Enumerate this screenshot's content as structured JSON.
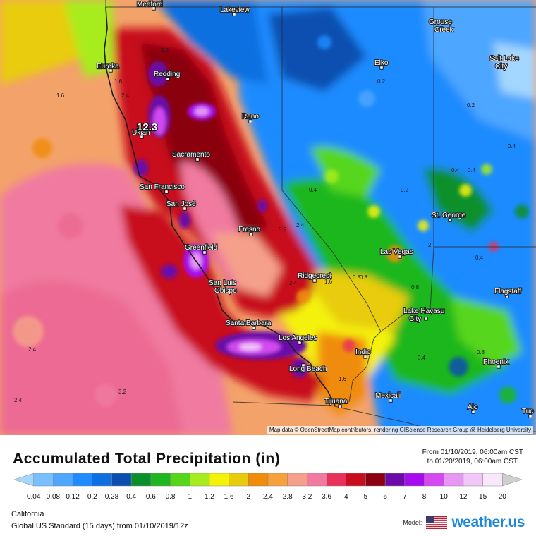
{
  "map": {
    "attribution": "Map data © OpenStreetMap contributors, rendering GIScience Research Group @ Heidelberg University",
    "max_value": "12.3",
    "cities": [
      {
        "name": "Medford"
      },
      {
        "name": "Lakeview"
      },
      {
        "name": "Grouse Creek"
      },
      {
        "name": "Eureka"
      },
      {
        "name": "Redding"
      },
      {
        "name": "Elko"
      },
      {
        "name": "Salt Lake City"
      },
      {
        "name": "Ukiah"
      },
      {
        "name": "Reno"
      },
      {
        "name": "Sacramento"
      },
      {
        "name": "San Francisco"
      },
      {
        "name": "San José"
      },
      {
        "name": "Fresno"
      },
      {
        "name": "St. George"
      },
      {
        "name": "Greenfield"
      },
      {
        "name": "Las Vegas"
      },
      {
        "name": "Ridgecrest"
      },
      {
        "name": "San Luis Obispo"
      },
      {
        "name": "Flagstaff"
      },
      {
        "name": "Lake Havasu City"
      },
      {
        "name": "Santa Barbara"
      },
      {
        "name": "Los Angeles"
      },
      {
        "name": "Indio"
      },
      {
        "name": "Long Beach"
      },
      {
        "name": "Phoenix"
      },
      {
        "name": "Mexicali"
      },
      {
        "name": "Tijuana"
      },
      {
        "name": "Ajo"
      },
      {
        "name": "Tuc"
      }
    ],
    "value_labels": [
      "1.6",
      "2.4",
      "3.2",
      "1.6",
      "2.4",
      "0.2",
      "0.2",
      "0.4",
      "0.4",
      "0.4",
      "0.2",
      "0.4",
      "0.4",
      "0.8",
      "0.8",
      "2.4",
      "3.2",
      "2.4",
      "2.4",
      "3.2",
      "1.6",
      "0.8",
      "1.6",
      "0.4",
      "2",
      "0.8"
    ]
  },
  "footer": {
    "title": "Accumulated Total Precipitation (in)",
    "period_from": "From 01/10/2019, 06:00am CST",
    "period_to": "to 01/20/2019, 06:00am CST",
    "region": "California",
    "model_run": "Global US Standard (15 days) from 01/10/2019/12z",
    "model_label": "Model:",
    "brand": "weather.us"
  },
  "legend": {
    "labels": [
      "0.04",
      "0.08",
      "0.12",
      "0.2",
      "0.28",
      "0.4",
      "0.6",
      "0.8",
      "1",
      "1.2",
      "1.6",
      "2",
      "2.4",
      "2.8",
      "3.2",
      "3.6",
      "4",
      "5",
      "6",
      "7",
      "8",
      "10",
      "12",
      "15",
      "20"
    ],
    "colors": [
      "#a4d7ff",
      "#78bfff",
      "#4ea6ff",
      "#1f8bff",
      "#0d6fe0",
      "#0a4fb0",
      "#0a8f2a",
      "#1fb71f",
      "#56d61a",
      "#a7ec1e",
      "#f4f20a",
      "#e8cc0a",
      "#f08c0a",
      "#f7a13c",
      "#f5a08a",
      "#f07aa0",
      "#e8305a",
      "#c80e1e",
      "#8a0010",
      "#6a0aa8",
      "#a80af0",
      "#d24af0",
      "#e796f4",
      "#f2c6f8",
      "#f8e8fb",
      "#cfcfcf"
    ]
  }
}
